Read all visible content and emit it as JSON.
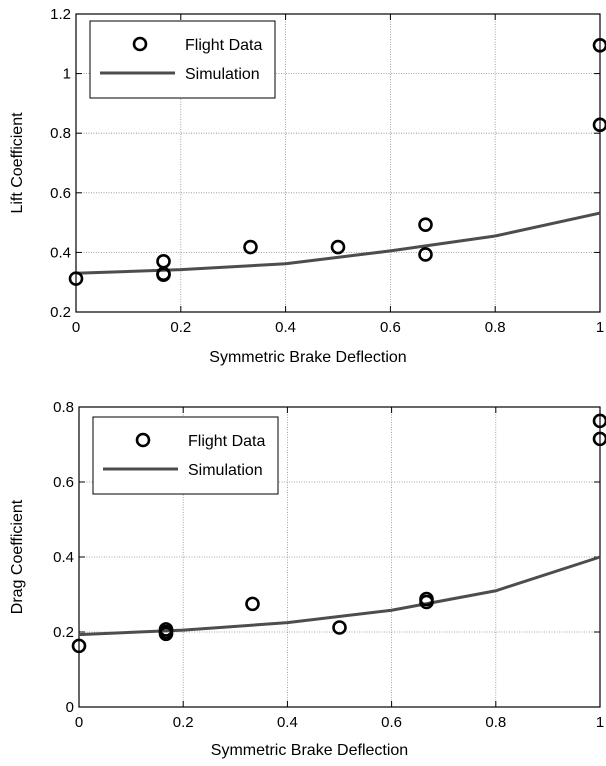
{
  "chart_data": [
    {
      "type": "scatter",
      "xlabel": "Symmetric Brake Deflection",
      "ylabel": "Lift Coefficient",
      "xlim": [
        0,
        1
      ],
      "ylim": [
        0.2,
        1.2
      ],
      "xticks": [
        0,
        0.2,
        0.4,
        0.6,
        0.8,
        1
      ],
      "xtick_labels": [
        "0",
        "0.2",
        "0.4",
        "0.6",
        "0.8",
        "1"
      ],
      "yticks": [
        0.2,
        0.4,
        0.6,
        0.8,
        1,
        1.2
      ],
      "ytick_labels": [
        "0.2",
        "0.4",
        "0.6",
        "0.8",
        "1",
        "1.2"
      ],
      "grid": true,
      "legend_position": "top-left",
      "series": [
        {
          "name": "Flight Data",
          "kind": "markers",
          "marker": "open-circle",
          "color": "#000000",
          "x": [
            0,
            0.167,
            0.167,
            0.167,
            0.333,
            0.5,
            0.667,
            0.667,
            1,
            1
          ],
          "y": [
            0.312,
            0.37,
            0.328,
            0.325,
            0.418,
            0.418,
            0.493,
            0.393,
            0.828,
            1.095
          ]
        },
        {
          "name": "Simulation",
          "kind": "line",
          "color": "#4d4d4d",
          "x": [
            0,
            0.2,
            0.4,
            0.6,
            0.8,
            1
          ],
          "y": [
            0.33,
            0.342,
            0.362,
            0.405,
            0.455,
            0.532
          ]
        }
      ]
    },
    {
      "type": "scatter",
      "xlabel": "Symmetric Brake Deflection",
      "ylabel": "Drag Coefficient",
      "xlim": [
        0,
        1
      ],
      "ylim": [
        0,
        0.8
      ],
      "xticks": [
        0,
        0.2,
        0.4,
        0.6,
        0.8,
        1
      ],
      "xtick_labels": [
        "0",
        "0.2",
        "0.4",
        "0.6",
        "0.8",
        "1"
      ],
      "yticks": [
        0,
        0.2,
        0.4,
        0.6,
        0.8
      ],
      "ytick_labels": [
        "0",
        "0.2",
        "0.4",
        "0.6",
        "0.8"
      ],
      "grid": true,
      "legend_position": "top-left",
      "series": [
        {
          "name": "Flight Data",
          "kind": "markers",
          "marker": "open-circle",
          "color": "#000000",
          "x": [
            0,
            0.167,
            0.167,
            0.167,
            0.333,
            0.5,
            0.667,
            0.667,
            1,
            1
          ],
          "y": [
            0.163,
            0.207,
            0.2,
            0.195,
            0.275,
            0.212,
            0.288,
            0.28,
            0.715,
            0.763
          ]
        },
        {
          "name": "Simulation",
          "kind": "line",
          "color": "#4d4d4d",
          "x": [
            0,
            0.2,
            0.4,
            0.6,
            0.8,
            1
          ],
          "y": [
            0.193,
            0.205,
            0.225,
            0.258,
            0.31,
            0.4
          ]
        }
      ]
    }
  ]
}
